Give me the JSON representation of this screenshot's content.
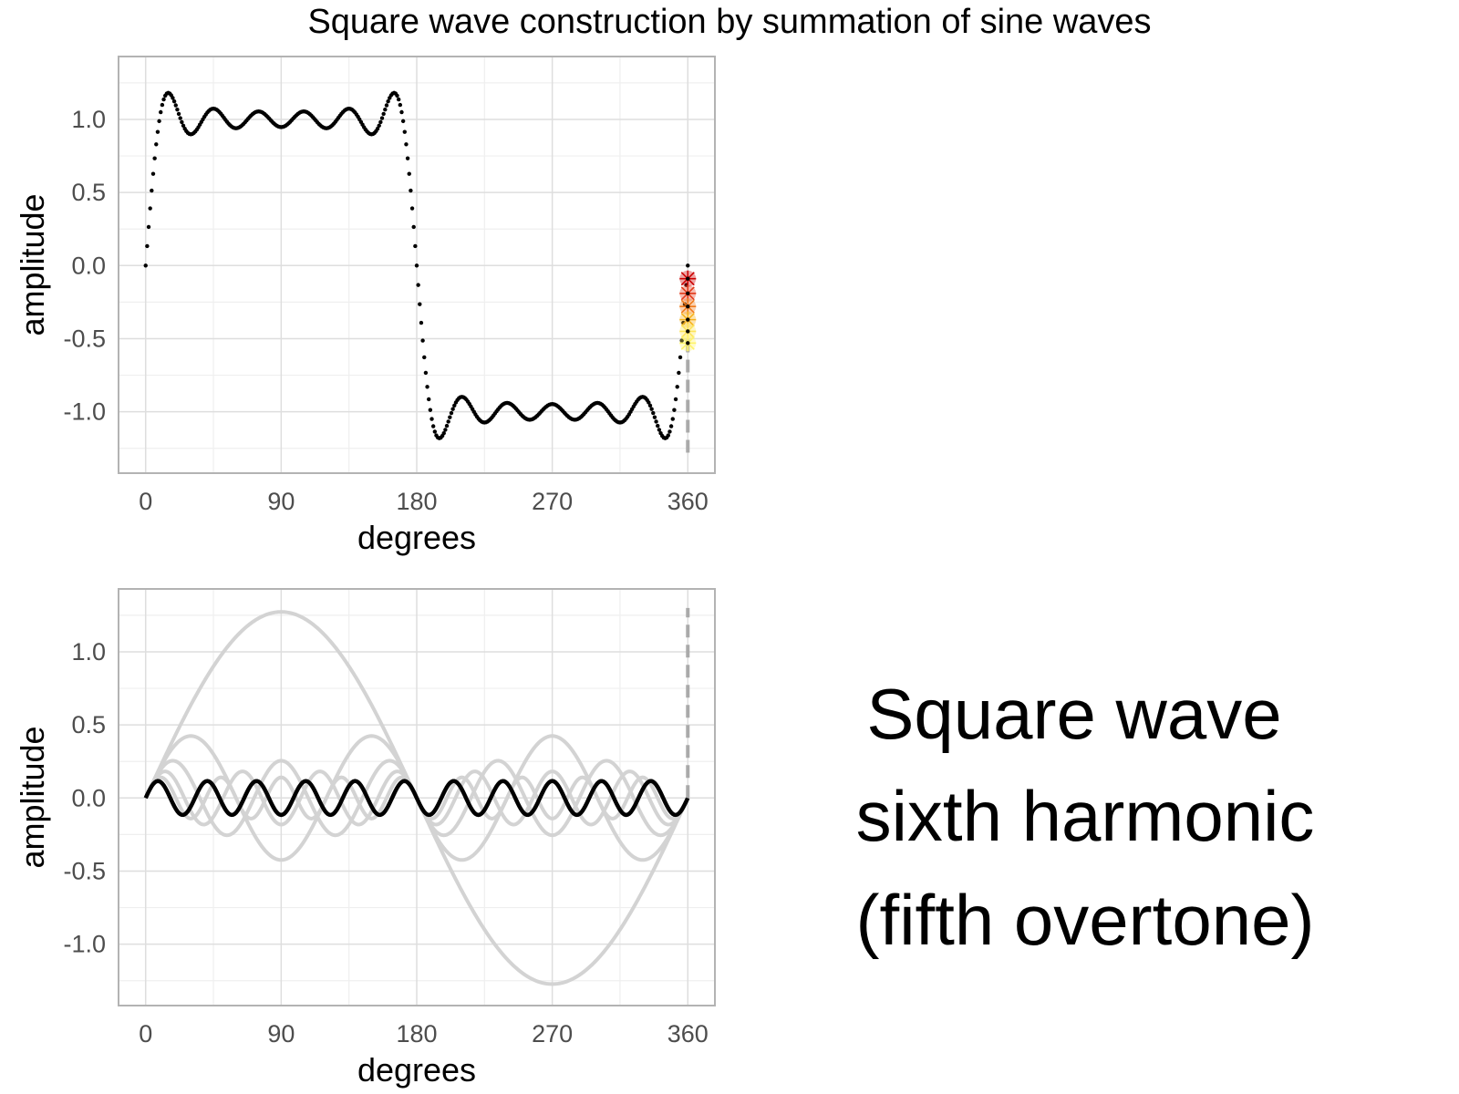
{
  "title": "Square wave construction by summation of sine waves",
  "caption": {
    "lines": [
      "Square wave",
      "sixth harmonic",
      "(fifth overtone)"
    ]
  },
  "colors": {
    "panel_border": "#b3b3b3",
    "grid_major": "#dedede",
    "grid_minor": "#efefef",
    "sum_dots": "#000000",
    "component_curves": "#d3d3d3",
    "current_harmonic": "#000000",
    "cursor_line": "#aaaaaa",
    "marker_colors": [
      "#cc0000",
      "#e33a1a",
      "#f07a1a",
      "#f7b21c",
      "#fde45a",
      "#fff36a"
    ]
  },
  "chart_data": [
    {
      "type": "scatter",
      "title": "",
      "xlabel": "degrees",
      "ylabel": "amplitude",
      "xlim": [
        -18,
        378
      ],
      "ylim": [
        -1.42,
        1.43
      ],
      "xticks": [
        "0",
        "90",
        "180",
        "270",
        "360"
      ],
      "yticks": [
        "1.0",
        "0.5",
        "0.0",
        "-0.5",
        "-1.0"
      ],
      "grid": true,
      "series": [
        {
          "description_key": "partial_sum",
          "formula": "(4/pi) * sum of sin(n*x)/n for n = 1,3,5,7,9,11",
          "odd_harmonics": [
            1,
            3,
            5,
            7,
            9,
            11
          ],
          "x_start": 0,
          "x_end": 360,
          "x_step": 1
        }
      ],
      "cursor": {
        "x": 360,
        "y_from": -1.28,
        "y_to": -0.5
      },
      "markers_at_x": 360,
      "marker_values": [
        -0.09,
        -0.19,
        -0.28,
        -0.37,
        -0.45,
        -0.53
      ]
    },
    {
      "type": "line",
      "title": "",
      "xlabel": "degrees",
      "ylabel": "amplitude",
      "xlim": [
        -18,
        378
      ],
      "ylim": [
        -1.42,
        1.43
      ],
      "xticks": [
        "0",
        "90",
        "180",
        "270",
        "360"
      ],
      "yticks": [
        "1.0",
        "0.5",
        "0.0",
        "-0.5",
        "-1.0"
      ],
      "grid": true,
      "components": [
        {
          "harmonic": 1,
          "amplitude": 1.273
        },
        {
          "harmonic": 3,
          "amplitude": 0.424
        },
        {
          "harmonic": 5,
          "amplitude": 0.255
        },
        {
          "harmonic": 7,
          "amplitude": 0.182
        },
        {
          "harmonic": 9,
          "amplitude": 0.141
        }
      ],
      "current": {
        "harmonic": 11,
        "amplitude": 0.116
      },
      "cursor": {
        "x": 360,
        "y_from": 0.0,
        "y_to": 1.3
      }
    }
  ]
}
